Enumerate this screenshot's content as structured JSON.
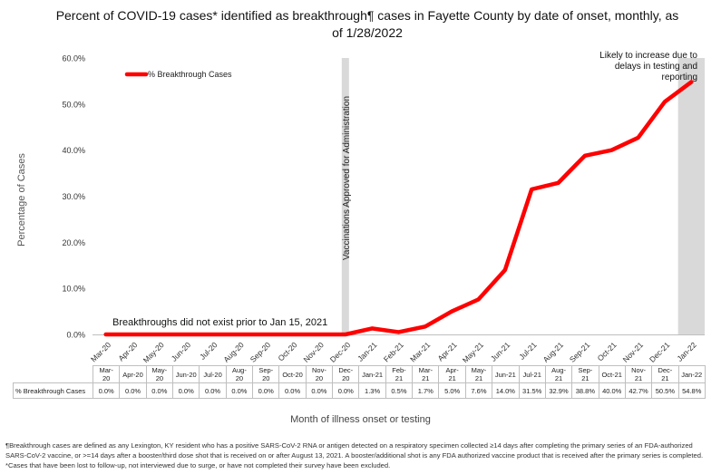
{
  "chart_data": {
    "type": "line",
    "title": "Percent of COVID-19 cases* identified as breakthrough¶ cases in Fayette County by date of onset, monthly, as of 1/28/2022",
    "xlabel": "Month of illness onset or testing",
    "ylabel": "Percentage of Cases",
    "ylim": [
      0,
      60
    ],
    "yticks": [
      "0.0%",
      "10.0%",
      "20.0%",
      "30.0%",
      "40.0%",
      "50.0%",
      "60.0%"
    ],
    "ytick_values": [
      0,
      10,
      20,
      30,
      40,
      50,
      60
    ],
    "grid": false,
    "legend_position": "top-left",
    "categories": [
      "Mar-20",
      "Apr-20",
      "May-20",
      "Jun-20",
      "Jul-20",
      "Aug-20",
      "Sep-20",
      "Oct-20",
      "Nov-20",
      "Dec-20",
      "Jan-21",
      "Feb-21",
      "Mar-21",
      "Apr-21",
      "May-21",
      "Jun-21",
      "Jul-21",
      "Aug-21",
      "Sep-21",
      "Oct-21",
      "Nov-21",
      "Dec-21",
      "Jan-22"
    ],
    "table_categories": [
      "Mar-20",
      "Apr-20",
      "May-20",
      "Jun-20",
      "Jul-20",
      "Aug-20",
      "Sep-20",
      "Oct-20",
      "Nov-20",
      "Dec-20",
      "Jan-21",
      "Feb-21",
      "Mar-21",
      "Apr-21",
      "May-21",
      "Jun-21",
      "Jul-21",
      "Aug-21",
      "Sep-21",
      "Oct-21",
      "Nov-21",
      "Dec-21",
      "Jan-22"
    ],
    "series": [
      {
        "name": "% Breakthrough Cases",
        "color": "#ff0000",
        "values": [
          0,
          0,
          0,
          0,
          0,
          0,
          0,
          0,
          0,
          0,
          1.3,
          0.5,
          1.7,
          5.0,
          7.6,
          14.0,
          31.5,
          32.9,
          38.8,
          40.0,
          42.7,
          50.5,
          54.8
        ],
        "labels": [
          "0.0%",
          "0.0%",
          "0.0%",
          "0.0%",
          "0.0%",
          "0.0%",
          "0.0%",
          "0.0%",
          "0.0%",
          "0.0%",
          "1.3%",
          "0.5%",
          "1.7%",
          "5.0%",
          "7.6%",
          "14.0%",
          "31.5%",
          "32.9%",
          "38.8%",
          "40.0%",
          "42.7%",
          "50.5%",
          "54.8%"
        ]
      }
    ],
    "shaded_bands": [
      {
        "category": "Dec-20",
        "label": "Vaccinations Approved for Administration",
        "color": "#d9d9d9"
      },
      {
        "category": "Jan-22",
        "label": "",
        "color": "#d9d9d9"
      }
    ],
    "annotations": [
      {
        "text": "Breakthroughs did not exist prior to Jan 15, 2021"
      },
      {
        "text_lines": [
          "Likely to increase due to",
          "delays in testing and",
          "reporting"
        ]
      }
    ]
  },
  "footnote": "¶Breakthrough cases are defined as any Lexington, KY resident who has a positive SARS-CoV-2 RNA or antigen detected on a respiratory specimen collected ≥14 days after completing the primary series of an FDA-authorized SARS-CoV-2 vaccine, or >=14 days after a booster/third dose shot that is received on or after August 13, 2021.  A booster/additional shot is any FDA authorized vaccine product that is received after the primary series is completed.  *Cases that have been lost to follow-up, not interviewed due to surge, or have not completed their survey have been excluded."
}
